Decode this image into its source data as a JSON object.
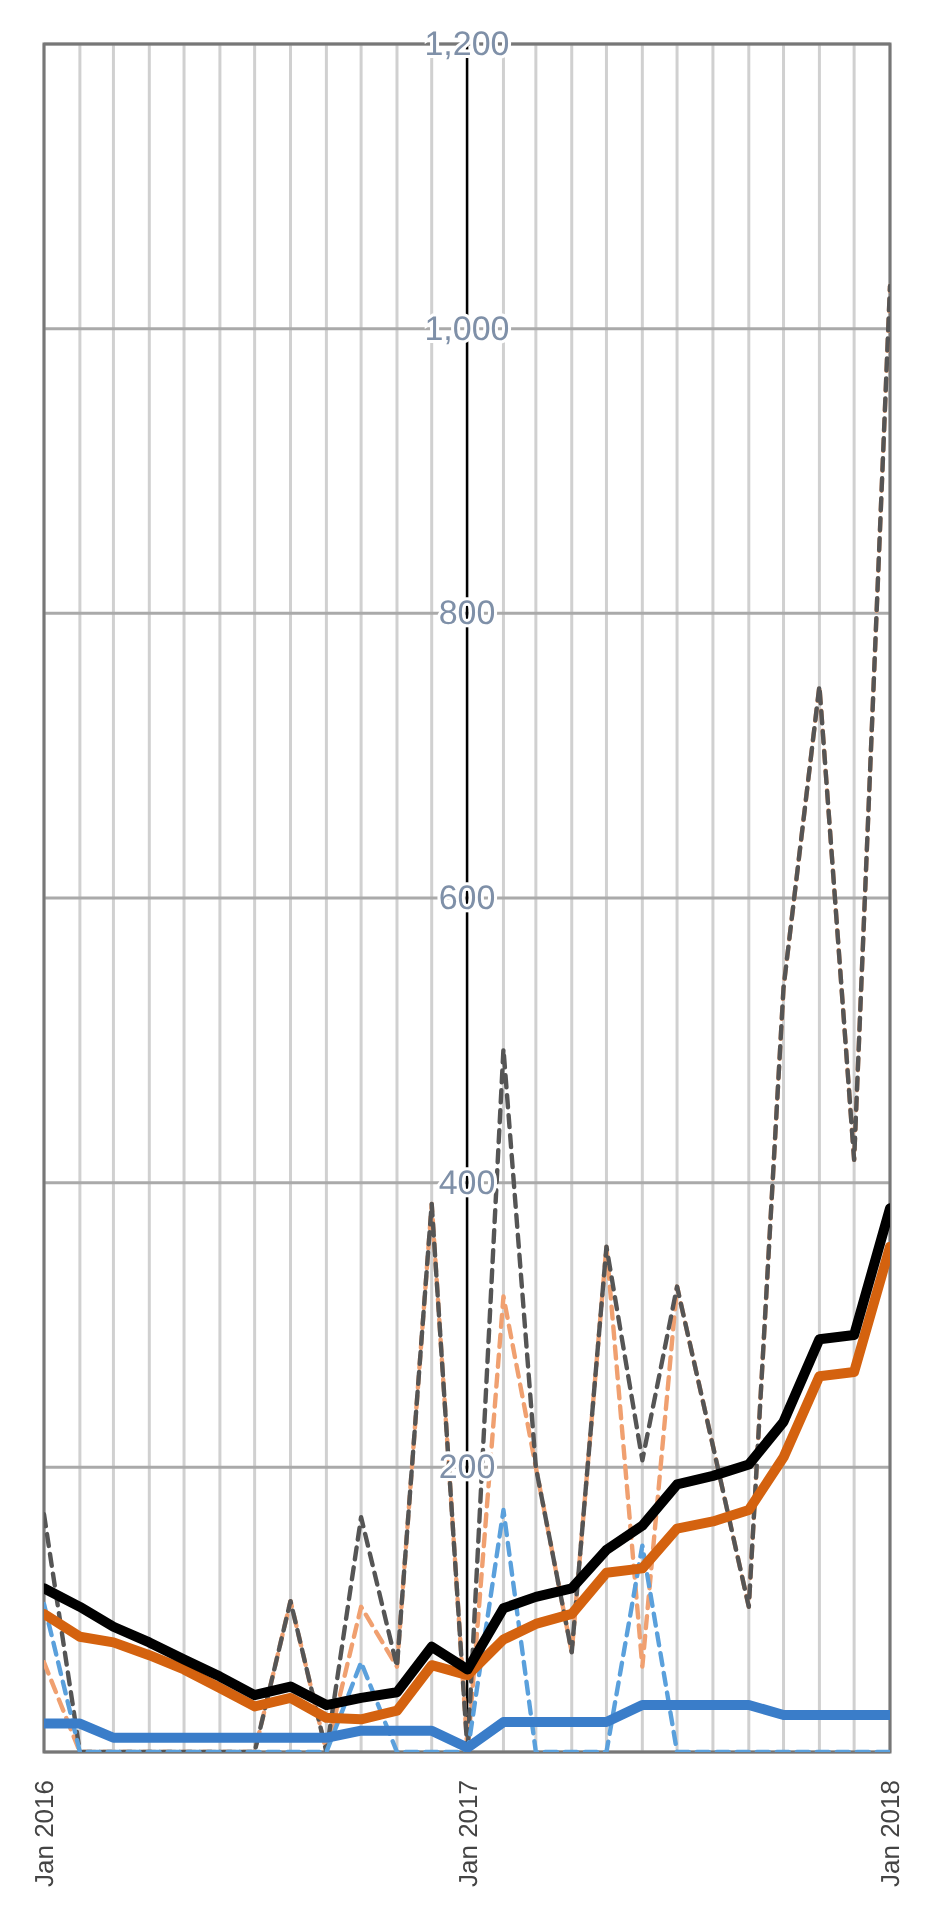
{
  "chart_data": {
    "type": "line",
    "x": [
      "2016-01",
      "2016-02",
      "2016-03",
      "2016-04",
      "2016-05",
      "2016-06",
      "2016-07",
      "2016-08",
      "2016-09",
      "2016-10",
      "2016-11",
      "2016-12",
      "2017-01",
      "2017-02",
      "2017-03",
      "2017-04",
      "2017-05",
      "2017-06",
      "2017-07",
      "2017-08",
      "2017-09",
      "2017-10",
      "2017-11",
      "2017-12",
      "2018-01"
    ],
    "series": [
      {
        "color": "#f0a070",
        "line_style": "dashed",
        "values": [
          63,
          0,
          0,
          0,
          0,
          0,
          0,
          106,
          0,
          102,
          60,
          385,
          0,
          320,
          200,
          70,
          355,
          60,
          327,
          215,
          102,
          537,
          749,
          416,
          1030
        ]
      },
      {
        "color": "#555555",
        "line_style": "dashed",
        "values": [
          167,
          0,
          0,
          0,
          0,
          0,
          0,
          106,
          0,
          165,
          60,
          385,
          0,
          494,
          200,
          70,
          355,
          205,
          327,
          215,
          102,
          537,
          749,
          416,
          1030
        ]
      },
      {
        "color": "#5aa0dc",
        "line_style": "dashed",
        "values": [
          104,
          0,
          0,
          0,
          0,
          0,
          0,
          0,
          0,
          63,
          0,
          0,
          0,
          170,
          0,
          0,
          0,
          145,
          0,
          0,
          0,
          0,
          0,
          0,
          0
        ]
      },
      {
        "color": "#3a7dc9",
        "line_style": "solid",
        "values": [
          20,
          20,
          10,
          10,
          10,
          10,
          10,
          10,
          10,
          15,
          15,
          15,
          3,
          21,
          21,
          21,
          21,
          33,
          33,
          33,
          33,
          26,
          26,
          26,
          26
        ]
      },
      {
        "color": "#d4620f",
        "line_style": "solid",
        "values": [
          97,
          81,
          77,
          68,
          58,
          45,
          32,
          38,
          24,
          23,
          29,
          61,
          54,
          79,
          90,
          97,
          126,
          129,
          157,
          162,
          170,
          207,
          264,
          267,
          355
        ]
      },
      {
        "color": "#000000",
        "line_style": "solid",
        "values": [
          115,
          102,
          88,
          77,
          65,
          53,
          40,
          46,
          33,
          38,
          42,
          74,
          58,
          101,
          109,
          115,
          142,
          159,
          188,
          194,
          202,
          232,
          290,
          293,
          382
        ]
      }
    ],
    "xlim": [
      "2016-01",
      "2018-01"
    ],
    "xticks": [
      {
        "value": "2016-01",
        "label": "Jan 2016"
      },
      {
        "value": "2016-02",
        "label": null
      },
      {
        "value": "2016-03",
        "label": null
      },
      {
        "value": "2016-04",
        "label": null
      },
      {
        "value": "2016-05",
        "label": null
      },
      {
        "value": "2016-06",
        "label": null
      },
      {
        "value": "2016-07",
        "label": null
      },
      {
        "value": "2016-08",
        "label": null
      },
      {
        "value": "2016-09",
        "label": null
      },
      {
        "value": "2016-10",
        "label": null
      },
      {
        "value": "2016-11",
        "label": null
      },
      {
        "value": "2016-12",
        "label": null
      },
      {
        "value": "2017-01",
        "label": "Jan 2017"
      },
      {
        "value": "2017-02",
        "label": null
      },
      {
        "value": "2017-03",
        "label": null
      },
      {
        "value": "2017-04",
        "label": null
      },
      {
        "value": "2017-05",
        "label": null
      },
      {
        "value": "2017-06",
        "label": null
      },
      {
        "value": "2017-07",
        "label": null
      },
      {
        "value": "2017-08",
        "label": null
      },
      {
        "value": "2017-09",
        "label": null
      },
      {
        "value": "2017-10",
        "label": null
      },
      {
        "value": "2017-11",
        "label": null
      },
      {
        "value": "2017-12",
        "label": null
      },
      {
        "value": "2018-01",
        "label": "Jan 2018"
      }
    ],
    "ylim": [
      0,
      1200
    ],
    "yticks": [
      {
        "value": 0,
        "label": null
      },
      200,
      400,
      600,
      800,
      {
        "value": 1000,
        "label": "1,000"
      },
      {
        "value": 1200,
        "label": "1,200"
      }
    ],
    "grid": true,
    "marker": "none"
  }
}
